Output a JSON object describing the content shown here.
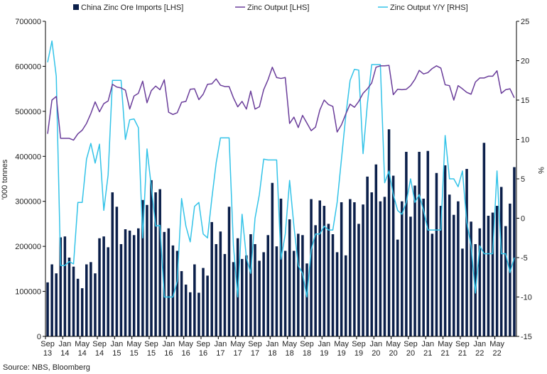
{
  "chart_data": {
    "type": "bar-line-combo",
    "title": "",
    "legend": [
      {
        "label": "China Zinc Ore Imports [LHS]",
        "kind": "bar",
        "color": "#0b1f4a"
      },
      {
        "label": "Zinc Output [LHS]",
        "kind": "line",
        "color": "#6a3d9a"
      },
      {
        "label": "Zinc Output Y/Y [RHS]",
        "kind": "line",
        "color": "#33c3e8"
      }
    ],
    "ylabel_left": "'000 tonnes",
    "ylabel_right": "%",
    "ylim_left": [
      0,
      700000
    ],
    "ylim_right": [
      -15,
      25
    ],
    "yticks_left": [
      "0",
      "100000",
      "200000",
      "300000",
      "400000",
      "500000",
      "600000",
      "700000"
    ],
    "yticks_right": [
      "-15",
      "-10",
      "-5",
      "0",
      "5",
      "10",
      "15",
      "20",
      "25"
    ],
    "x_start": "Sep 2013",
    "x_end": "Sep 2022",
    "month_count": 109,
    "xtick_labels": [
      {
        "month": "Sep",
        "year": "13"
      },
      {
        "month": "Jan",
        "year": "14"
      },
      {
        "month": "May",
        "year": "14"
      },
      {
        "month": "Sep",
        "year": "14"
      },
      {
        "month": "Jan",
        "year": "15"
      },
      {
        "month": "May",
        "year": "15"
      },
      {
        "month": "Sep",
        "year": "15"
      },
      {
        "month": "Jan",
        "year": "16"
      },
      {
        "month": "May",
        "year": "16"
      },
      {
        "month": "Sep",
        "year": "16"
      },
      {
        "month": "Jan",
        "year": "17"
      },
      {
        "month": "May",
        "year": "17"
      },
      {
        "month": "Sep",
        "year": "17"
      },
      {
        "month": "Jan",
        "year": "18"
      },
      {
        "month": "May",
        "year": "18"
      },
      {
        "month": "Sep",
        "year": "18"
      },
      {
        "month": "Jan",
        "year": "19"
      },
      {
        "month": "May",
        "year": "19"
      },
      {
        "month": "Sep",
        "year": "19"
      },
      {
        "month": "Jan",
        "year": "20"
      },
      {
        "month": "May",
        "year": "20"
      },
      {
        "month": "Sep",
        "year": "20"
      },
      {
        "month": "Jan",
        "year": "21"
      },
      {
        "month": "May",
        "year": "21"
      },
      {
        "month": "Sep",
        "year": "21"
      },
      {
        "month": "Jan",
        "year": "22"
      },
      {
        "month": "May",
        "year": "22"
      }
    ],
    "series": [
      {
        "name": "China Zinc Ore Imports [LHS]",
        "axis": "left",
        "note": "approximate monthly values read from chart, Sep 2013 - Sep 2022",
        "values": [
          120000,
          160000,
          140000,
          220000,
          222000,
          175000,
          155000,
          128000,
          107000,
          160000,
          165000,
          140000,
          218000,
          222000,
          198000,
          320000,
          288000,
          205000,
          238000,
          235000,
          225000,
          240000,
          303000,
          292000,
          347000,
          320000,
          327000,
          232000,
          240000,
          202000,
          190000,
          145000,
          115000,
          98000,
          160000,
          97000,
          152000,
          135000,
          254000,
          205000,
          233000,
          183000,
          288000,
          165000,
          218000,
          172000,
          180000,
          227000,
          205000,
          168000,
          187000,
          225000,
          341000,
          200000,
          306000,
          190000,
          260000,
          190000,
          228000,
          225000,
          162000,
          305000,
          247000,
          302000,
          290000,
          250000,
          227000,
          187000,
          298000,
          180000,
          305000,
          298000,
          250000,
          293000,
          355000,
          320000,
          382000,
          300000,
          310000,
          460000,
          357000,
          215000,
          300000,
          410000,
          266000,
          335000,
          410000,
          306000,
          412000,
          228000,
          363000,
          290000,
          380000,
          315000,
          270000,
          300000,
          195000,
          372000,
          255000,
          205000,
          240000,
          430000,
          268000,
          275000,
          290000,
          332000,
          245000,
          295000,
          376000
        ]
      },
      {
        "name": "Zinc Output [LHS]",
        "axis": "left",
        "note": "approximate monthly values read from chart",
        "values": [
          450000,
          525000,
          533000,
          440000,
          440000,
          440000,
          436000,
          450000,
          458000,
          473000,
          495000,
          521000,
          499000,
          517000,
          523000,
          560000,
          554000,
          552000,
          547000,
          505000,
          534000,
          540000,
          567000,
          519000,
          546000,
          556000,
          548000,
          570000,
          498000,
          493000,
          497000,
          520000,
          522000,
          549000,
          550000,
          526000,
          538000,
          560000,
          561000,
          572000,
          558000,
          555000,
          555000,
          530000,
          510000,
          522000,
          505000,
          545000,
          505000,
          510000,
          548000,
          570000,
          598000,
          575000,
          573000,
          575000,
          473000,
          487000,
          464000,
          491000,
          474000,
          457000,
          465000,
          503000,
          525000,
          515000,
          511000,
          454000,
          470000,
          494000,
          516000,
          509000,
          522000,
          540000,
          550000,
          563000,
          598000,
          601000,
          601000,
          602000,
          537000,
          549000,
          548000,
          549000,
          557000,
          571000,
          591000,
          583000,
          586000,
          595000,
          601000,
          596000,
          559000,
          557000,
          525000,
          557000,
          550000,
          542000,
          538000,
          565000,
          574000,
          574000,
          578000,
          578000,
          590000,
          540000,
          548000,
          550000,
          530000
        ]
      },
      {
        "name": "Zinc Output Y/Y [RHS]",
        "axis": "right",
        "note": "approximate monthly values read from chart",
        "values": [
          19.8,
          22.5,
          18,
          -6,
          -6,
          -5.5,
          -5.8,
          2,
          2,
          7.5,
          9.5,
          7,
          9.4,
          1,
          5.5,
          17.5,
          17.5,
          17.5,
          10,
          12.5,
          12.6,
          11.5,
          -2.5,
          8.8,
          4,
          -1,
          -0.9,
          -10,
          -10,
          -10,
          -8,
          2.5,
          -1,
          -3,
          1.5,
          2,
          -2,
          -2.5,
          2.5,
          7,
          10.2,
          10.2,
          10.2,
          -3.5,
          -10,
          0.5,
          -5,
          -7,
          0,
          3,
          7.5,
          7.4,
          7.4,
          7.4,
          -5.2,
          -2,
          4.8,
          -1,
          -6,
          -7,
          -10,
          -4,
          -2,
          -2,
          -1,
          -1.5,
          -1.5,
          2,
          7.5,
          13,
          17.5,
          18.9,
          18.8,
          8.2,
          14.5,
          19.5,
          19.5,
          19.5,
          4.5,
          6,
          3,
          1,
          0.5,
          2,
          5,
          2,
          3,
          1,
          -1.5,
          -1.5,
          -1.5,
          -1.5,
          10.5,
          5,
          5,
          4,
          6,
          -0.5,
          -3.5,
          -9.5,
          -3.5,
          -4.5,
          -4.5,
          -4.5,
          6,
          -4.5,
          -4.5,
          -6.9,
          -5
        ]
      }
    ],
    "source": "Source: NBS, Bloomberg"
  }
}
